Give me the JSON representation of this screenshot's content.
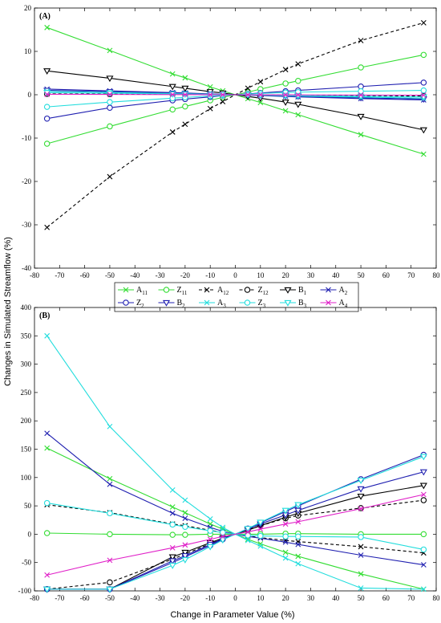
{
  "figure": {
    "ylabel": "Changes in Simulated Streamflow (%)",
    "xlabel": "Change in Parameter Value (%)"
  },
  "legend": [
    {
      "key": "A11",
      "base": "A",
      "sub": "11",
      "color": "#33dd33",
      "marker": "x",
      "dash": false
    },
    {
      "key": "Z11",
      "base": "Z",
      "sub": "11",
      "color": "#33dd33",
      "marker": "circle",
      "dash": false
    },
    {
      "key": "A12",
      "base": "A",
      "sub": "12",
      "color": "#000000",
      "marker": "x",
      "dash": true
    },
    {
      "key": "Z12",
      "base": "Z",
      "sub": "12",
      "color": "#000000",
      "marker": "circle",
      "dash": true
    },
    {
      "key": "B1",
      "base": "B",
      "sub": "1",
      "color": "#000000",
      "marker": "triangle",
      "dash": false
    },
    {
      "key": "A2",
      "base": "A",
      "sub": "2",
      "color": "#1f1fb0",
      "marker": "x",
      "dash": false
    },
    {
      "key": "Z2",
      "base": "Z",
      "sub": "2",
      "color": "#1f1fb0",
      "marker": "circle",
      "dash": false
    },
    {
      "key": "B2",
      "base": "B",
      "sub": "2",
      "color": "#1f1fb0",
      "marker": "triangle",
      "dash": false
    },
    {
      "key": "A3",
      "base": "A",
      "sub": "3",
      "color": "#22dddd",
      "marker": "x",
      "dash": false
    },
    {
      "key": "Z3",
      "base": "Z",
      "sub": "3",
      "color": "#22dddd",
      "marker": "circle",
      "dash": false
    },
    {
      "key": "B3",
      "base": "B",
      "sub": "3",
      "color": "#22dddd",
      "marker": "triangle",
      "dash": false
    },
    {
      "key": "A4",
      "base": "A",
      "sub": "4",
      "color": "#e020c8",
      "marker": "x",
      "dash": false
    }
  ],
  "chart_data": [
    {
      "type": "line",
      "title": "(A)",
      "xlim": [
        -80,
        80
      ],
      "ylim": [
        -40,
        20
      ],
      "xticks": [
        -80,
        -70,
        -60,
        -50,
        -40,
        -30,
        -20,
        -10,
        0,
        10,
        20,
        30,
        40,
        50,
        60,
        70,
        80
      ],
      "yticks": [
        -40,
        -30,
        -20,
        -10,
        0,
        10,
        20
      ],
      "x": [
        -75,
        -50,
        -25,
        -20,
        -10,
        -5,
        0,
        5,
        10,
        20,
        25,
        50,
        75
      ],
      "series": [
        {
          "name": "A11",
          "values": [
            15.5,
            10.2,
            4.8,
            3.9,
            1.8,
            0.9,
            0,
            -0.9,
            -1.8,
            -3.7,
            -4.6,
            -9.2,
            -13.7
          ]
        },
        {
          "name": "Z11",
          "values": [
            -11.3,
            -7.3,
            -3.4,
            -2.7,
            -1.3,
            -0.6,
            0,
            0.6,
            1.3,
            2.6,
            3.2,
            6.3,
            9.2
          ]
        },
        {
          "name": "A12",
          "values": [
            -30.6,
            -18.9,
            -8.6,
            -6.8,
            -3.2,
            -1.6,
            0,
            1.5,
            3.0,
            5.8,
            7.1,
            12.5,
            16.6
          ]
        },
        {
          "name": "Z12",
          "values": [
            0.2,
            0.15,
            0.1,
            0.08,
            0.04,
            0.02,
            0,
            -0.02,
            -0.04,
            -0.08,
            -0.1,
            -0.2,
            -0.3
          ]
        },
        {
          "name": "B1",
          "values": [
            5.5,
            3.8,
            1.9,
            1.5,
            0.7,
            0.4,
            0,
            -0.4,
            -0.8,
            -1.7,
            -2.2,
            -5.0,
            -8.1
          ]
        },
        {
          "name": "A2",
          "values": [
            1.3,
            0.9,
            0.5,
            0.4,
            0.2,
            0.1,
            0,
            -0.1,
            -0.2,
            -0.4,
            -0.5,
            -0.9,
            -1.2
          ]
        },
        {
          "name": "Z2",
          "values": [
            -5.5,
            -3.0,
            -1.3,
            -1.0,
            -0.5,
            -0.2,
            0,
            0.2,
            0.4,
            0.8,
            1.0,
            1.9,
            2.8
          ]
        },
        {
          "name": "B2",
          "values": [
            1.0,
            0.7,
            0.35,
            0.28,
            0.14,
            0.07,
            0,
            -0.07,
            -0.14,
            -0.28,
            -0.35,
            -0.7,
            -1.0
          ]
        },
        {
          "name": "A3",
          "values": [
            0.8,
            0.55,
            0.28,
            0.22,
            0.11,
            0.05,
            0,
            -0.05,
            -0.11,
            -0.22,
            -0.28,
            -0.55,
            -0.8
          ]
        },
        {
          "name": "Z3",
          "values": [
            -2.8,
            -1.7,
            -0.8,
            -0.6,
            -0.3,
            -0.15,
            0,
            0.15,
            0.3,
            0.5,
            0.6,
            0.8,
            1.0
          ]
        },
        {
          "name": "B3",
          "values": [
            0.5,
            0.35,
            0.18,
            0.14,
            0.07,
            0.04,
            0,
            -0.04,
            -0.07,
            -0.14,
            -0.18,
            -0.35,
            -0.5
          ]
        },
        {
          "name": "A4",
          "values": [
            0.1,
            0.07,
            0.04,
            0.03,
            0.01,
            0.01,
            0,
            -0.01,
            -0.01,
            -0.03,
            -0.04,
            -0.07,
            -0.1
          ]
        }
      ]
    },
    {
      "type": "line",
      "title": "(B)",
      "xlim": [
        -80,
        80
      ],
      "ylim": [
        -100,
        400
      ],
      "xticks": [
        -80,
        -70,
        -60,
        -50,
        -40,
        -30,
        -20,
        -10,
        0,
        10,
        20,
        30,
        40,
        50,
        60,
        70,
        80
      ],
      "yticks": [
        -100,
        -50,
        0,
        50,
        100,
        150,
        200,
        250,
        300,
        350,
        400
      ],
      "x": [
        -75,
        -50,
        -25,
        -20,
        -10,
        -5,
        0,
        5,
        10,
        20,
        25,
        50,
        75
      ],
      "series": [
        {
          "name": "A11",
          "values": [
            152,
            98,
            48,
            38,
            18,
            9,
            0,
            -9,
            -17,
            -32,
            -39,
            -70,
            -97
          ]
        },
        {
          "name": "Z11",
          "values": [
            2,
            0,
            -1,
            -1,
            0,
            0,
            0,
            0,
            0,
            1,
            1,
            0,
            0
          ]
        },
        {
          "name": "A12",
          "values": [
            52,
            38,
            18,
            15,
            7,
            3,
            0,
            -3,
            -6,
            -11,
            -13,
            -22,
            -33
          ]
        },
        {
          "name": "Z12",
          "values": [
            -97,
            -85,
            -44,
            -35,
            -17,
            -8,
            0,
            8,
            15,
            28,
            33,
            46,
            60
          ]
        },
        {
          "name": "B1",
          "values": [
            -97,
            -97,
            -40,
            -32,
            -15,
            -7,
            0,
            7,
            15,
            30,
            37,
            67,
            86
          ]
        },
        {
          "name": "A2",
          "values": [
            178,
            88,
            37,
            28,
            12,
            5,
            0,
            -4,
            -7,
            -14,
            -18,
            -37,
            -54
          ]
        },
        {
          "name": "Z2",
          "values": [
            -97,
            -97,
            -50,
            -40,
            -20,
            -9,
            0,
            10,
            20,
            40,
            50,
            97,
            140
          ]
        },
        {
          "name": "B2",
          "values": [
            -97,
            -97,
            -47,
            -38,
            -18,
            -8,
            0,
            9,
            18,
            34,
            42,
            80,
            110
          ]
        },
        {
          "name": "A3",
          "values": [
            350,
            190,
            78,
            60,
            27,
            12,
            0,
            -11,
            -21,
            -42,
            -52,
            -95,
            -97
          ]
        },
        {
          "name": "Z3",
          "values": [
            55,
            37,
            17,
            13,
            6,
            3,
            0,
            -2,
            -3,
            -4,
            -4,
            -5,
            -27
          ]
        },
        {
          "name": "B3",
          "values": [
            -97,
            -97,
            -55,
            -45,
            -22,
            -10,
            0,
            10,
            21,
            42,
            52,
            95,
            137
          ]
        },
        {
          "name": "A4",
          "values": [
            -72,
            -46,
            -24,
            -19,
            -9,
            -4,
            0,
            4,
            9,
            18,
            22,
            45,
            70
          ]
        }
      ]
    }
  ]
}
